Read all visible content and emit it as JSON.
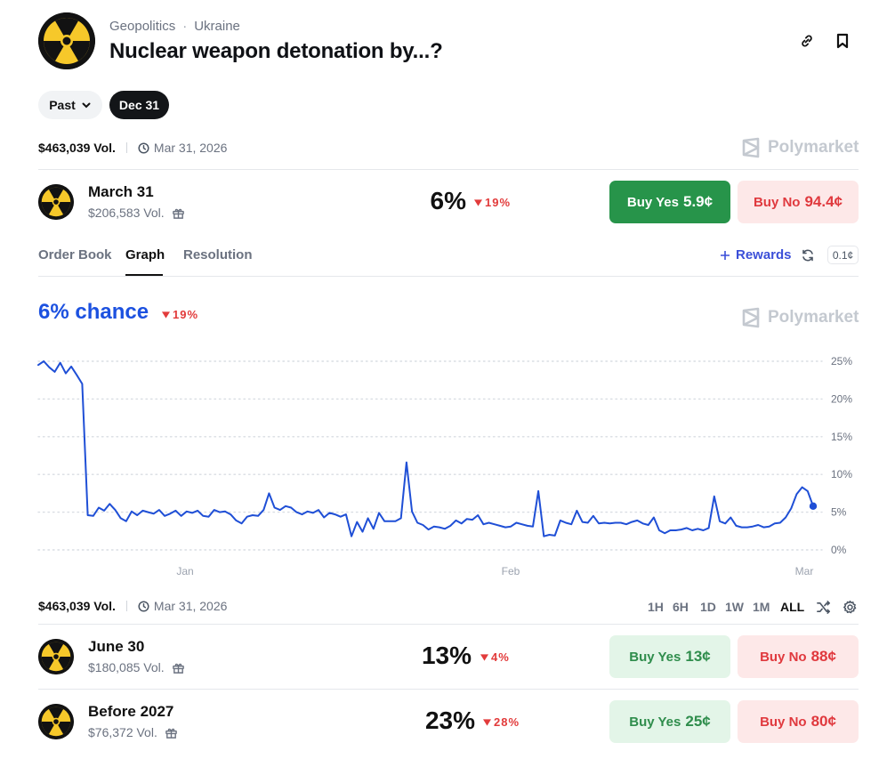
{
  "header": {
    "category": "Geopolitics",
    "subcategory": "Ukraine",
    "title": "Nuclear weapon detonation by...?",
    "icons": [
      "link-icon",
      "bookmark-icon"
    ]
  },
  "filters": {
    "past_label": "Past",
    "selected_label": "Dec 31"
  },
  "summary": {
    "volume": "$463,039 Vol.",
    "date": "Mar 31, 2026",
    "brand": "Polymarket"
  },
  "selected_market": {
    "name": "March 31",
    "volume": "$206,583 Vol.",
    "percent": "6%",
    "change": "19%",
    "buy_yes_label": "Buy Yes",
    "buy_yes_price": "5.9¢",
    "buy_no_label": "Buy No",
    "buy_no_price": "94.4¢"
  },
  "tabs": [
    "Order Book",
    "Graph",
    "Resolution"
  ],
  "active_tab": "Graph",
  "rewards_label": "Rewards",
  "tick_size": "0.1¢",
  "graph": {
    "chance_text": "6% chance",
    "change": "19%",
    "brand": "Polymarket"
  },
  "timeframes": [
    "1H",
    "6H",
    "1D",
    "1W",
    "1M",
    "ALL"
  ],
  "active_timeframe": "ALL",
  "markets": [
    {
      "name": "June 30",
      "volume": "$180,085 Vol.",
      "percent": "13%",
      "change": "4%",
      "buy_yes_label": "Buy Yes",
      "buy_yes_price": "13¢",
      "buy_no_label": "Buy No",
      "buy_no_price": "88¢"
    },
    {
      "name": "Before 2027",
      "volume": "$76,372 Vol.",
      "percent": "23%",
      "change": "28%",
      "buy_yes_label": "Buy Yes",
      "buy_yes_price": "25¢",
      "buy_no_label": "Buy No",
      "buy_no_price": "80¢"
    }
  ],
  "colors": {
    "accent_blue": "#1c51e0",
    "line_blue": "#1f4fd6",
    "yes_green": "#27944a",
    "no_red": "#e0393e",
    "down_red": "#e23b3b"
  },
  "chart_data": {
    "type": "line",
    "series": [
      {
        "values": [
          24.5,
          25.0,
          24.2,
          23.6,
          24.8,
          23.4,
          24.3,
          23.2,
          22.0,
          4.6,
          4.5,
          5.6,
          5.2,
          6.1,
          5.3,
          4.2,
          3.8,
          5.1,
          4.6,
          5.2,
          5.0,
          4.8,
          5.3,
          4.5,
          4.8,
          5.2,
          4.5,
          5.1,
          4.9,
          5.2,
          4.5,
          4.4,
          5.3,
          5.0,
          5.1,
          4.7,
          3.9,
          3.5,
          4.4,
          4.6,
          4.5,
          5.3,
          7.5,
          5.6,
          5.3,
          5.8,
          5.6,
          5.0,
          4.7,
          5.1,
          4.9,
          5.3,
          4.3,
          4.9,
          4.7,
          4.4,
          4.7,
          1.8,
          3.7,
          2.4,
          4.2,
          2.8,
          4.9,
          3.8,
          3.8,
          3.8,
          4.2,
          11.6,
          5.1,
          3.6,
          3.3,
          2.7,
          3.1,
          3.0,
          2.8,
          3.2,
          3.9,
          3.5,
          4.1,
          4.0,
          4.6,
          3.4,
          3.6,
          3.4,
          3.2,
          3.0,
          3.1,
          3.6,
          3.4,
          3.2,
          3.1,
          7.8,
          1.8,
          2.0,
          1.9,
          3.9,
          3.6,
          3.4,
          5.2,
          3.7,
          3.6,
          4.5,
          3.5,
          3.6,
          3.5,
          3.6,
          3.6,
          3.4,
          3.7,
          3.9,
          3.5,
          3.3,
          4.3,
          2.6,
          2.2,
          2.6,
          2.6,
          2.7,
          2.9,
          2.6,
          2.8,
          2.6,
          2.9,
          7.1,
          3.8,
          3.5,
          4.3,
          3.2,
          3.0,
          3.0,
          3.1,
          3.3,
          3.0,
          3.1,
          3.5,
          3.6,
          4.3,
          5.5,
          7.4,
          8.3,
          7.8,
          5.8
        ]
      }
    ],
    "x_tick_labels": [
      "Jan",
      "Feb",
      "Mar"
    ],
    "y_tick_labels": [
      "25%",
      "20%",
      "15%",
      "10%",
      "5%",
      "0%"
    ],
    "ylim": [
      0,
      25
    ],
    "grid": true
  }
}
